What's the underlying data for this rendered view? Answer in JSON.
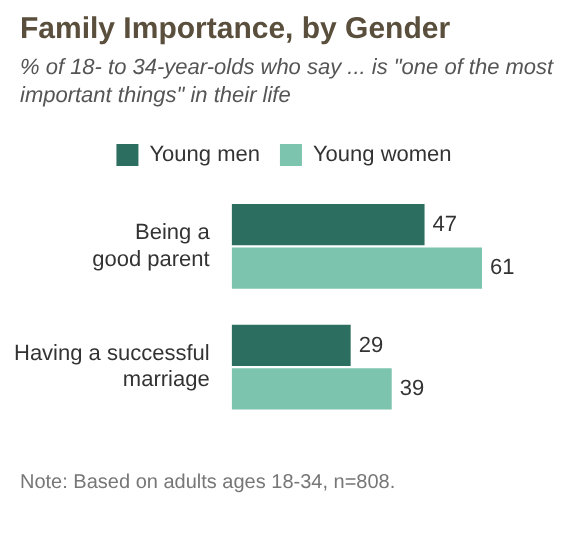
{
  "chart_data": {
    "type": "bar",
    "orientation": "horizontal",
    "title": "Family Importance, by Gender",
    "subtitle": "% of 18- to 34-year-olds who say ... is \"one of the most important things\" in their life",
    "categories": [
      "Being a good parent",
      "Having a successful marriage"
    ],
    "series": [
      {
        "name": "Young men",
        "color": "#2c6e5f",
        "values": [
          47,
          29
        ]
      },
      {
        "name": "Young women",
        "color": "#7cc4ad",
        "values": [
          61,
          39
        ]
      }
    ],
    "data_labels": true,
    "legend": "top",
    "annotations": [
      "Note: Based on adults ages 18-34, n=808."
    ]
  }
}
